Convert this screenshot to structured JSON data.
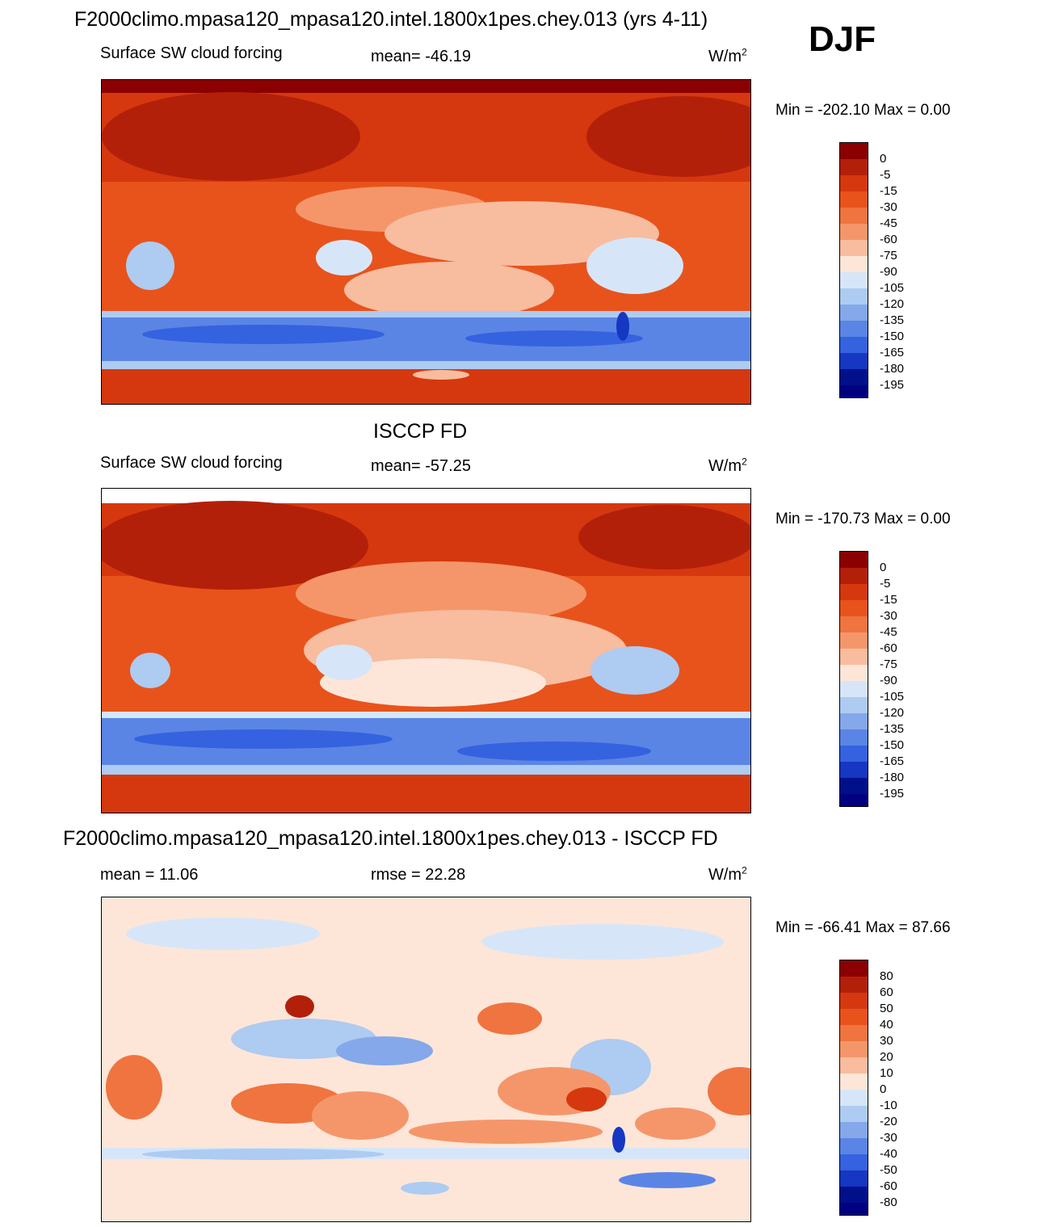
{
  "season": "DJF",
  "panels": [
    {
      "title": "F2000climo.mpasa120_mpasa120.intel.1800x1pes.chey.013 (yrs 4-11)",
      "left_label": "Surface SW cloud forcing",
      "center_label": "mean= -46.19",
      "unit_base": "W/m",
      "unit_exp": "2",
      "minmax": "Min = -202.10 Max =   0.00",
      "colorbar_levels": [
        "0",
        "-5",
        "-15",
        "-30",
        "-45",
        "-60",
        "-75",
        "-90",
        "-105",
        "-120",
        "-135",
        "-150",
        "-165",
        "-180",
        "-195"
      ]
    },
    {
      "title": "ISCCP FD",
      "left_label": "Surface SW cloud forcing",
      "center_label": "mean= -57.25",
      "unit_base": "W/m",
      "unit_exp": "2",
      "minmax": "Min = -170.73 Max =   0.00",
      "colorbar_levels": [
        "0",
        "-5",
        "-15",
        "-30",
        "-45",
        "-60",
        "-75",
        "-90",
        "-105",
        "-120",
        "-135",
        "-150",
        "-165",
        "-180",
        "-195"
      ]
    },
    {
      "title": "F2000climo.mpasa120_mpasa120.intel.1800x1pes.chey.013 - ISCCP FD",
      "left_label": "mean =  11.06",
      "center_label": "rmse =  22.28",
      "unit_base": "W/m",
      "unit_exp": "2",
      "minmax": "Min = -66.41 Max =  87.66",
      "colorbar_levels": [
        "80",
        "60",
        "50",
        "40",
        "30",
        "20",
        "10",
        "0",
        "-10",
        "-20",
        "-30",
        "-40",
        "-50",
        "-60",
        "-80"
      ]
    }
  ],
  "colorbar_colors": [
    "#8b0000",
    "#b3200a",
    "#d5380e",
    "#e8531c",
    "#ef7440",
    "#f5966a",
    "#f8bc9f",
    "#fde6d8",
    "#d6e6f8",
    "#aecbf1",
    "#84a8ea",
    "#5b85e5",
    "#3562df",
    "#1537c2",
    "#00108a",
    "#000080"
  ]
}
